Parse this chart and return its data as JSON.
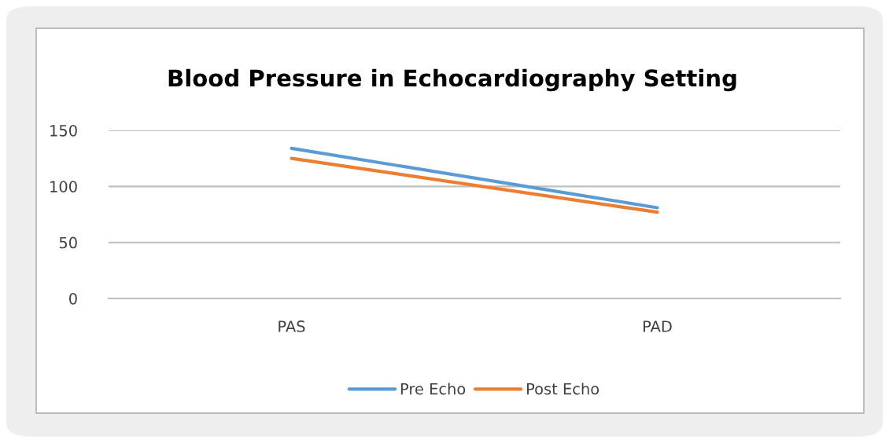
{
  "chart_data": {
    "type": "line",
    "title": "Blood Pressure in Echocardiography Setting",
    "categories": [
      "PAS",
      "PAD"
    ],
    "series": [
      {
        "name": "Pre Echo",
        "color": "#5b9bd5",
        "values": [
          134,
          81
        ]
      },
      {
        "name": "Post Echo",
        "color": "#ed7d31",
        "values": [
          125,
          77
        ]
      }
    ],
    "ylim": [
      0,
      150
    ],
    "yticks": [
      0,
      50,
      100,
      150
    ],
    "grid": "y",
    "legend": "bottom",
    "marker": "none",
    "line_style": "solid"
  }
}
